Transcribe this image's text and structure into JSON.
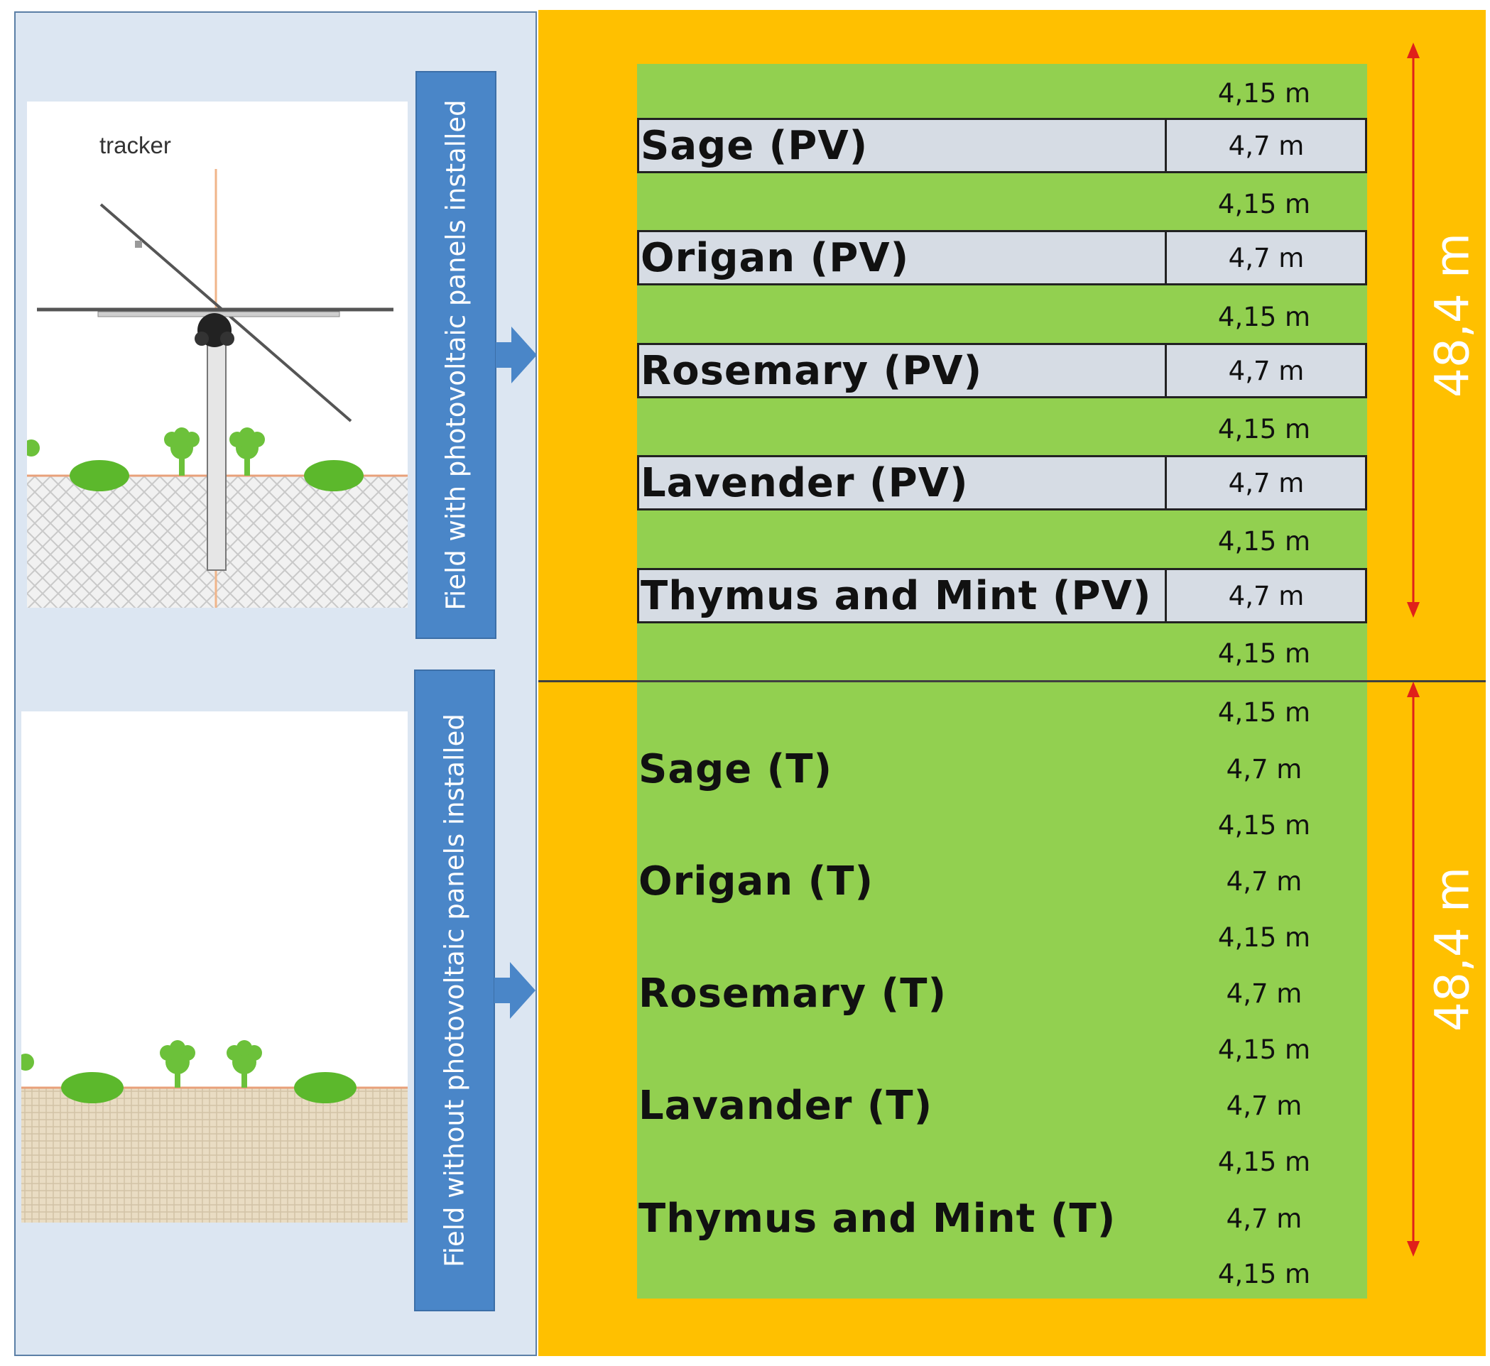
{
  "left_panel": {
    "top_label": "Field with photovoltaic panels installed",
    "bottom_label": "Field without photovoltaic panels installed",
    "tracker_label": "tracker"
  },
  "fields": {
    "pv": {
      "total_dimension": "48,4 m",
      "spacings": [
        "4,15 m",
        "4,15 m",
        "4,15 m",
        "4,15 m",
        "4,15 m",
        "4,15 m"
      ],
      "plots": [
        {
          "name": "Sage (PV)",
          "width": "4,7 m"
        },
        {
          "name": "Origan (PV)",
          "width": "4,7 m"
        },
        {
          "name": "Rosemary (PV)",
          "width": "4,7 m"
        },
        {
          "name": "Lavender (PV)",
          "width": "4,7 m"
        },
        {
          "name": "Thymus and Mint (PV)",
          "width": "4,7 m"
        }
      ]
    },
    "t": {
      "total_dimension": "48,4 m",
      "spacings": [
        "4,15 m",
        "4,15 m",
        "4,15 m",
        "4,15 m",
        "4,15 m",
        "4,15 m"
      ],
      "plots": [
        {
          "name": "Sage (T)",
          "width": "4,7 m"
        },
        {
          "name": "Origan (T)",
          "width": "4,7 m"
        },
        {
          "name": "Rosemary (T)",
          "width": "4,7 m"
        },
        {
          "name": "Lavander (T)",
          "width": "4,7 m"
        },
        {
          "name": "Thymus and Mint (T)",
          "width": "4,7 m"
        }
      ]
    }
  },
  "colors": {
    "field_background": "#ffc000",
    "crop_area": "#92d050",
    "pv_plot_fill": "#d6dce4",
    "label_box": "#4a86c8",
    "dimension_arrow": "#e0201a",
    "left_panel": "#dce6f2"
  }
}
